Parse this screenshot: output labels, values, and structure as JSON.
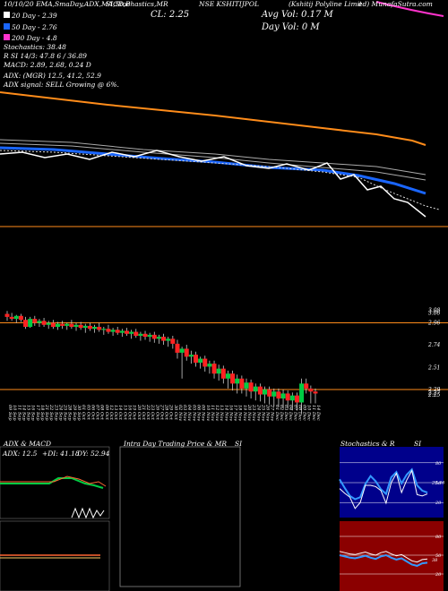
{
  "header": {
    "source_line": "10/10/20  EMA,SmaDay,ADX,MACD,B",
    "stoch_line": "SI,Stochastics,MR",
    "cl": "CL: 2.25",
    "symbol": "NSE KSHITIJPOL",
    "company": "(Kshitij Polyline Limit",
    "site": "ed) MunafaSutra.com",
    "avg_vol": "Avg Vol: 0.17 M",
    "day_vol": "Day Vol: 0   M"
  },
  "legend": {
    "ema20": "20 Day - 2.39",
    "ema50": "50 Day - 2.76",
    "ema200": "200 Day - 4.8",
    "stoch": "Stochastics: 38.48",
    "r_line": "R                    SI 14/3: 47.8               6  / 36.89",
    "macd": "MACD: 2.89, 2.68, 0.24  D",
    "adx": "ADX:                              (MGR) 12.5, 41.2, 52.9",
    "adx_signal": "ADX  signal: SELL Growing @ 6%."
  },
  "colors": {
    "ema200": "#ff8c1a",
    "ema50": "#1a66ff",
    "ema20": "#e6e6e6",
    "price": "#ffffff",
    "up": "#00cc44",
    "down": "#ff2222",
    "magenta": "#ff33cc",
    "stoch_bg": "#00008b",
    "rsi_bg": "#8b0000"
  },
  "chart_data": [
    {
      "type": "line",
      "title": "EMA / SMA",
      "series": [
        {
          "name": "200 Day",
          "values": [
            4.95,
            4.94,
            4.93,
            4.92,
            4.91,
            4.9,
            4.89,
            4.88,
            4.87,
            4.86,
            4.85,
            4.84,
            4.83,
            4.82,
            4.81,
            4.8
          ]
        },
        {
          "name": "50 Day",
          "values": [
            3.35,
            3.33,
            3.3,
            3.27,
            3.24,
            3.22,
            3.2,
            3.18,
            3.16,
            3.13,
            3.1,
            3.06,
            3.0,
            2.93,
            2.85,
            2.76
          ]
        },
        {
          "name": "20 Day",
          "values": [
            3.3,
            3.28,
            3.24,
            3.21,
            3.19,
            3.17,
            3.15,
            3.13,
            3.11,
            3.07,
            3.0,
            2.92,
            2.8,
            2.65,
            2.5,
            2.39
          ]
        }
      ]
    },
    {
      "type": "candlestick",
      "title": "Daily Price",
      "ylabels": [
        "3.08",
        "3.06",
        "2.96",
        "2.74",
        "2.51",
        "2.29",
        "2.27",
        "2.25"
      ],
      "x": [
        "09 Sep",
        "10 Sep",
        "11 Sep",
        "14 Sep",
        "15 Sep",
        "16 Sep",
        "17 Sep",
        "18 Sep",
        "21 Sep",
        "22 Sep",
        "23 Sep",
        "24 Sep",
        "25 Sep",
        "28 Sep",
        "29 Sep",
        "30 Sep",
        "01 Oct",
        "05 Oct",
        "06 Oct",
        "07 Oct",
        "08 Oct",
        "09 Oct",
        "12 Oct",
        "13 Oct",
        "14 Oct",
        "15 Oct",
        "16 Oct",
        "19 Oct",
        "20 Oct",
        "21 Oct",
        "22 Oct",
        "23 Oct",
        "26 Oct",
        "27 Oct",
        "28 Oct",
        "29 Oct",
        "30 Oct",
        "02 Nov",
        "03 Nov",
        "04 Nov",
        "05 Nov",
        "06 Nov",
        "09 Nov",
        "10 Nov",
        "11 Nov",
        "12 Nov",
        "13 Nov",
        "14 Nov",
        "16 Nov",
        "17 Nov",
        "18 Nov",
        "19 Nov",
        "20 Nov",
        "23 Nov",
        "24 Nov",
        "25 Nov",
        "26 Nov",
        "27 Nov",
        "01 Dec",
        "02 Dec",
        "03 Dec",
        "04 Dec",
        "07 Dec",
        "08 Dec",
        "09 Dec",
        "10 Dec",
        "11 Dec",
        "14 Dec"
      ],
      "ohlc": [
        [
          3.05,
          3.08,
          2.98,
          3.02
        ],
        [
          3.02,
          3.06,
          2.98,
          3.0
        ],
        [
          3.0,
          3.04,
          2.96,
          3.03
        ],
        [
          3.03,
          3.05,
          2.97,
          2.99
        ],
        [
          2.99,
          3.02,
          2.9,
          2.92
        ],
        [
          2.92,
          3.02,
          2.91,
          3.0
        ],
        [
          3.0,
          3.03,
          2.93,
          2.96
        ],
        [
          2.96,
          3.0,
          2.92,
          2.98
        ],
        [
          2.98,
          3.01,
          2.92,
          2.94
        ],
        [
          2.94,
          2.98,
          2.9,
          2.96
        ],
        [
          2.96,
          2.99,
          2.9,
          2.92
        ],
        [
          2.92,
          2.97,
          2.89,
          2.95
        ],
        [
          2.95,
          2.98,
          2.9,
          2.93
        ],
        [
          2.93,
          2.96,
          2.89,
          2.95
        ],
        [
          2.95,
          2.99,
          2.9,
          2.92
        ],
        [
          2.92,
          2.96,
          2.88,
          2.94
        ],
        [
          2.94,
          2.97,
          2.89,
          2.91
        ],
        [
          2.91,
          2.95,
          2.86,
          2.93
        ],
        [
          2.93,
          2.96,
          2.88,
          2.9
        ],
        [
          2.9,
          2.94,
          2.86,
          2.92
        ],
        [
          2.92,
          2.96,
          2.87,
          2.89
        ],
        [
          2.89,
          2.92,
          2.84,
          2.9
        ],
        [
          2.9,
          2.94,
          2.85,
          2.87
        ],
        [
          2.87,
          2.91,
          2.83,
          2.89
        ],
        [
          2.89,
          2.92,
          2.84,
          2.86
        ],
        [
          2.86,
          2.9,
          2.82,
          2.88
        ],
        [
          2.88,
          2.91,
          2.83,
          2.85
        ],
        [
          2.85,
          2.89,
          2.8,
          2.87
        ],
        [
          2.87,
          2.9,
          2.81,
          2.83
        ],
        [
          2.83,
          2.87,
          2.78,
          2.85
        ],
        [
          2.85,
          2.88,
          2.79,
          2.82
        ],
        [
          2.82,
          2.86,
          2.77,
          2.84
        ],
        [
          2.84,
          2.87,
          2.76,
          2.8
        ],
        [
          2.8,
          2.84,
          2.75,
          2.82
        ],
        [
          2.82,
          2.85,
          2.74,
          2.78
        ],
        [
          2.78,
          2.82,
          2.72,
          2.8
        ],
        [
          2.8,
          2.83,
          2.7,
          2.75
        ],
        [
          2.75,
          2.79,
          2.6,
          2.66
        ],
        [
          2.66,
          2.72,
          2.4,
          2.7
        ],
        [
          2.7,
          2.74,
          2.58,
          2.62
        ],
        [
          2.62,
          2.68,
          2.55,
          2.64
        ],
        [
          2.64,
          2.67,
          2.52,
          2.56
        ],
        [
          2.56,
          2.62,
          2.5,
          2.6
        ],
        [
          2.6,
          2.63,
          2.47,
          2.52
        ],
        [
          2.52,
          2.58,
          2.45,
          2.55
        ],
        [
          2.55,
          2.58,
          2.4,
          2.45
        ],
        [
          2.45,
          2.54,
          2.38,
          2.5
        ],
        [
          2.5,
          2.53,
          2.35,
          2.4
        ],
        [
          2.4,
          2.48,
          2.3,
          2.45
        ],
        [
          2.45,
          2.48,
          2.28,
          2.35
        ],
        [
          2.35,
          2.44,
          2.25,
          2.4
        ],
        [
          2.4,
          2.43,
          2.25,
          2.3
        ],
        [
          2.3,
          2.4,
          2.22,
          2.36
        ],
        [
          2.36,
          2.39,
          2.2,
          2.27
        ],
        [
          2.27,
          2.35,
          2.18,
          2.32
        ],
        [
          2.32,
          2.35,
          2.17,
          2.24
        ],
        [
          2.24,
          2.32,
          2.15,
          2.29
        ],
        [
          2.29,
          2.32,
          2.14,
          2.22
        ],
        [
          2.22,
          2.3,
          2.12,
          2.27
        ],
        [
          2.27,
          2.3,
          2.12,
          2.2
        ],
        [
          2.2,
          2.29,
          2.1,
          2.25
        ],
        [
          2.25,
          2.28,
          2.1,
          2.18
        ],
        [
          2.18,
          2.26,
          2.08,
          2.23
        ],
        [
          2.23,
          2.26,
          2.08,
          2.16
        ],
        [
          2.16,
          2.4,
          2.05,
          2.35
        ],
        [
          2.35,
          2.4,
          2.25,
          2.3
        ],
        [
          2.3,
          2.33,
          2.15,
          2.27
        ],
        [
          2.27,
          2.3,
          2.15,
          2.25
        ]
      ]
    },
    {
      "type": "line",
      "title": "ADX & MACD",
      "ylabel_adx": "ADX: 12.5",
      "plus_di": "+DI: 41.18",
      "minus_di": "DY: 52.94",
      "series": [
        {
          "name": "+DI",
          "values": [
            41,
            41,
            41,
            41,
            41,
            41,
            41,
            41,
            41,
            41,
            41,
            43,
            45,
            46,
            45,
            43,
            42,
            41
          ]
        },
        {
          "name": "DY",
          "values": [
            50,
            50,
            50,
            50,
            50,
            50,
            50,
            50,
            50,
            50,
            50,
            52,
            55,
            53,
            54,
            53,
            52,
            53
          ]
        }
      ]
    },
    {
      "type": "line",
      "title": "Stochastics & RSI",
      "ylabels": [
        "80",
        "50",
        "20"
      ],
      "series": [
        {
          "name": "Stochastics",
          "values": [
            55,
            42,
            30,
            25,
            28,
            48,
            60,
            52,
            40,
            33,
            58,
            66,
            49,
            62,
            70,
            46,
            38,
            35
          ]
        },
        {
          "name": "RSI",
          "values": [
            50,
            48,
            46,
            45,
            47,
            49,
            46,
            44,
            48,
            50,
            46,
            43,
            45,
            40,
            35,
            33,
            37,
            38
          ]
        }
      ]
    }
  ],
  "dates": [
    "09 Sep",
    "10 Sep",
    "11 Sep",
    "14 Sep",
    "15 Sep",
    "16 Sep",
    "17 Sep",
    "18 Sep",
    "21 Sep",
    "22 Sep",
    "23 Sep",
    "24 Sep",
    "25 Sep",
    "28 Sep",
    "29 Sep",
    "30 Sep",
    "01 Oct",
    "05 Oct",
    "06 Oct",
    "07 Oct",
    "08 Oct",
    "09 Oct",
    "12 Oct",
    "13 Oct",
    "14 Oct",
    "15 Oct",
    "16 Oct",
    "19 Oct",
    "20 Oct",
    "21 Oct",
    "22 Oct",
    "23 Oct",
    "26 Oct",
    "27 Oct",
    "28 Oct",
    "29 Oct",
    "30 Oct",
    "02 Nov",
    "03 Nov",
    "04 Nov",
    "05 Nov",
    "06 Nov",
    "09 Nov",
    "10 Nov",
    "11 Nov",
    "12 Nov",
    "13 Nov",
    "14 Nov",
    "16 Nov",
    "17 Nov",
    "18 Nov",
    "19 Nov",
    "20 Nov",
    "23 Nov",
    "24 Nov",
    "25 Nov",
    "26 Nov",
    "27 Nov",
    "01 Dec",
    "02 Dec",
    "03 Dec",
    "04 Dec",
    "07 Dec",
    "08 Dec",
    "09 Dec",
    "10 Dec",
    "11 Dec",
    "14 Dec"
  ],
  "panels": {
    "adx_title": "ADX  & MACD",
    "intra_title": "Intra  Day Trading Price  & MR",
    "intra_si": "SI",
    "stoch_title": "Stochastics  & R",
    "stoch_si": "SI",
    "adx_val": "ADX: 12.5",
    "plus_di": "+DI: 41.18",
    "dy": "DY: 52.94",
    "stoch_ticks": [
      "80",
      "50",
      "20"
    ],
    "rsi_ticks": [
      "80",
      "50",
      "20"
    ],
    "stoch_mid": "29.46",
    "rsi_mid": "38"
  }
}
